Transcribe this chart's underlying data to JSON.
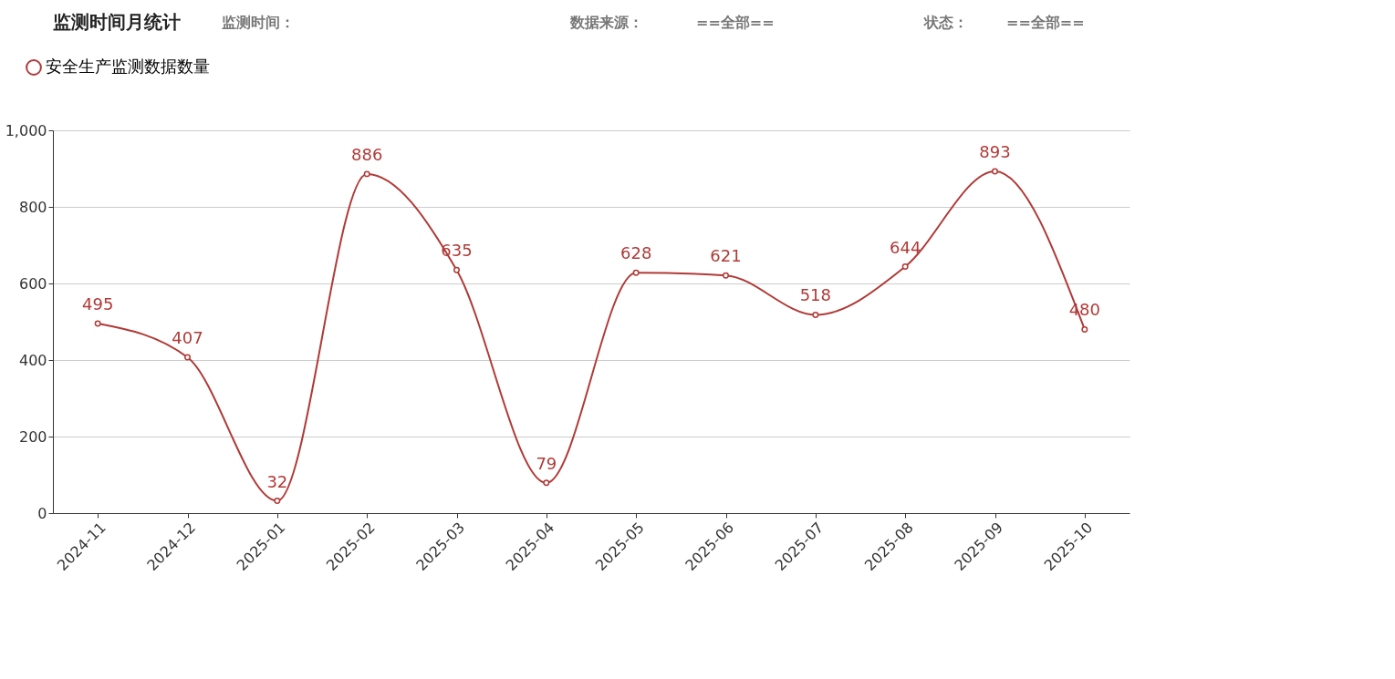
{
  "chart_data": {
    "type": "line",
    "title": "监测时间月统计",
    "annotations": [
      "监测时间：",
      "数据来源：",
      "==全部==",
      "状态：",
      "==全部=="
    ],
    "categories": [
      "2024-11",
      "2024-12",
      "2025-01",
      "2025-02",
      "2025-03",
      "2025-04",
      "2025-05",
      "2025-06",
      "2025-07",
      "2025-08",
      "2025-09",
      "2025-10"
    ],
    "series": [
      {
        "name": "安全生产监测数据数量",
        "color": "#b03a37",
        "values": [
          495,
          407,
          32,
          886,
          635,
          79,
          628,
          621,
          518,
          644,
          893,
          480
        ]
      }
    ],
    "ylim": [
      0,
      1000
    ],
    "yticks": [
      0,
      200,
      400,
      600,
      800,
      {
        "value": 1000,
        "label": "1,000"
      }
    ],
    "grid": "y",
    "legend": "top left",
    "marker": "circle",
    "data_labels": true
  }
}
